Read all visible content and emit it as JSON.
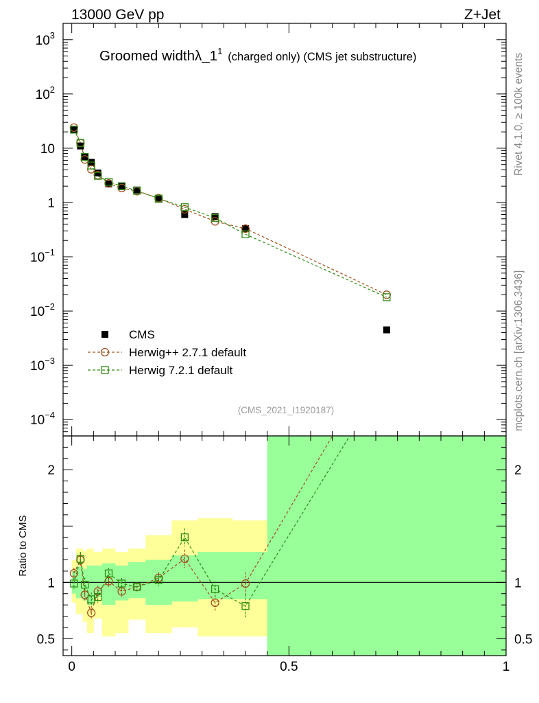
{
  "header": {
    "left": "13000 GeV pp",
    "right": "Z+Jet"
  },
  "side": {
    "rivet": "Rivet 4.1.0, ≥ 100k events",
    "mcplots": "mcplots.cern.ch [arXiv:1306.3436]"
  },
  "title": {
    "main": "Groomed widthλ_1",
    "sup": "1",
    "sub": "(charged only) (CMS jet substructure)"
  },
  "analysis_id": "(CMS_2021_I1920187)",
  "colors": {
    "data": "#000000",
    "herwigpp": "#a0501e",
    "herwig7": "#2e8b12",
    "band_yellow": "#ffff99",
    "band_green": "#99ff99"
  },
  "chart_data": [
    {
      "type": "scatter",
      "panel": "main",
      "yscale": "log",
      "xlim": [
        -0.02,
        1.0
      ],
      "ylim": [
        5e-05,
        2000
      ],
      "yticks": [
        {
          "value": 1000,
          "base": "10",
          "exp": "3"
        },
        {
          "value": 100,
          "base": "10",
          "exp": "2"
        },
        {
          "value": 10,
          "base": "10",
          "exp": ""
        },
        {
          "value": 1,
          "base": "1",
          "exp": ""
        },
        {
          "value": 0.1,
          "base": "10",
          "exp": "−1"
        },
        {
          "value": 0.01,
          "base": "10",
          "exp": "−2"
        },
        {
          "value": 0.001,
          "base": "10",
          "exp": "−3"
        },
        {
          "value": 0.0001,
          "base": "10",
          "exp": "−4"
        }
      ],
      "legend_position": "bottom-left",
      "series": [
        {
          "name": "CMS",
          "style": "data",
          "x": [
            0.005,
            0.02,
            0.03,
            0.045,
            0.06,
            0.085,
            0.115,
            0.15,
            0.2,
            0.26,
            0.33,
            0.4,
            0.725
          ],
          "y": [
            22,
            11,
            7,
            5.5,
            3.5,
            2.2,
            2.0,
            1.7,
            1.15,
            0.6,
            0.55,
            0.33,
            0.0045
          ]
        },
        {
          "name": "Herwig++ 2.7.1 default",
          "style": "herwigpp",
          "x": [
            0.005,
            0.02,
            0.03,
            0.045,
            0.06,
            0.085,
            0.115,
            0.15,
            0.2,
            0.26,
            0.33,
            0.4,
            0.725
          ],
          "y": [
            24,
            12.5,
            6.2,
            4.1,
            3.2,
            2.25,
            1.85,
            1.62,
            1.2,
            0.75,
            0.45,
            0.33,
            0.02
          ]
        },
        {
          "name": "Herwig 7.2.1 default",
          "style": "herwig7",
          "x": [
            0.005,
            0.02,
            0.03,
            0.045,
            0.06,
            0.085,
            0.115,
            0.15,
            0.2,
            0.26,
            0.33,
            0.4,
            0.725
          ],
          "y": [
            22,
            12.5,
            6.9,
            4.8,
            3.1,
            2.4,
            2.0,
            1.65,
            1.18,
            0.82,
            0.52,
            0.26,
            0.018
          ]
        }
      ]
    },
    {
      "type": "line",
      "panel": "ratio",
      "ylabel": "Ratio to CMS",
      "xlim": [
        -0.02,
        1.0
      ],
      "ylim": [
        0.35,
        2.3
      ],
      "yticks": [
        2,
        1,
        0.5
      ],
      "ytick_labels": [
        "2",
        "1",
        "0.5"
      ],
      "xticks": [
        0,
        0.5,
        1
      ],
      "xtick_labels": [
        "0",
        "0.5",
        "1"
      ],
      "reference_line": 1,
      "bins": [
        0,
        0.01,
        0.025,
        0.035,
        0.05,
        0.07,
        0.1,
        0.13,
        0.17,
        0.23,
        0.29,
        0.37,
        0.45,
        1.0
      ],
      "band_yellow_lo": [
        0.82,
        0.72,
        0.65,
        0.55,
        0.68,
        0.52,
        0.55,
        0.67,
        0.55,
        0.6,
        0.52,
        0.52,
        0.35
      ],
      "band_yellow_hi": [
        1.2,
        1.3,
        1.28,
        1.3,
        1.27,
        1.3,
        1.27,
        1.3,
        1.42,
        1.55,
        1.57,
        1.55,
        2.3
      ],
      "band_green_lo": [
        0.9,
        0.86,
        0.84,
        0.8,
        0.87,
        0.8,
        0.84,
        0.86,
        0.8,
        0.83,
        0.85,
        0.85,
        0.35
      ],
      "band_green_hi": [
        1.1,
        1.14,
        1.12,
        1.15,
        1.15,
        1.17,
        1.15,
        1.18,
        1.2,
        1.24,
        1.27,
        1.27,
        2.3
      ],
      "series": [
        {
          "name": "Herwig++ 2.7.1 default",
          "style": "herwigpp",
          "x": [
            0.005,
            0.02,
            0.03,
            0.045,
            0.06,
            0.085,
            0.115,
            0.15,
            0.2,
            0.26,
            0.33,
            0.4,
            0.6
          ],
          "y": [
            1.08,
            1.2,
            0.89,
            0.73,
            0.92,
            1.01,
            0.92,
            0.96,
            1.04,
            1.21,
            0.82,
            0.99,
            2.3
          ],
          "yerr": [
            0.05,
            0.06,
            0.06,
            0.06,
            0.05,
            0.05,
            0.05,
            0.04,
            0.05,
            0.08,
            0.07,
            0.1,
            0
          ]
        },
        {
          "name": "Herwig 7.2.1 default",
          "style": "herwig7",
          "x": [
            0.005,
            0.02,
            0.03,
            0.045,
            0.06,
            0.085,
            0.115,
            0.15,
            0.2,
            0.26,
            0.33,
            0.4,
            0.64
          ],
          "y": [
            0.99,
            1.21,
            0.98,
            0.85,
            0.87,
            1.08,
            0.99,
            0.96,
            1.02,
            1.4,
            0.94,
            0.79,
            2.3
          ],
          "yerr": [
            0.05,
            0.06,
            0.06,
            0.06,
            0.05,
            0.05,
            0.05,
            0.04,
            0.05,
            0.08,
            0.07,
            0.1,
            0
          ]
        }
      ]
    }
  ]
}
